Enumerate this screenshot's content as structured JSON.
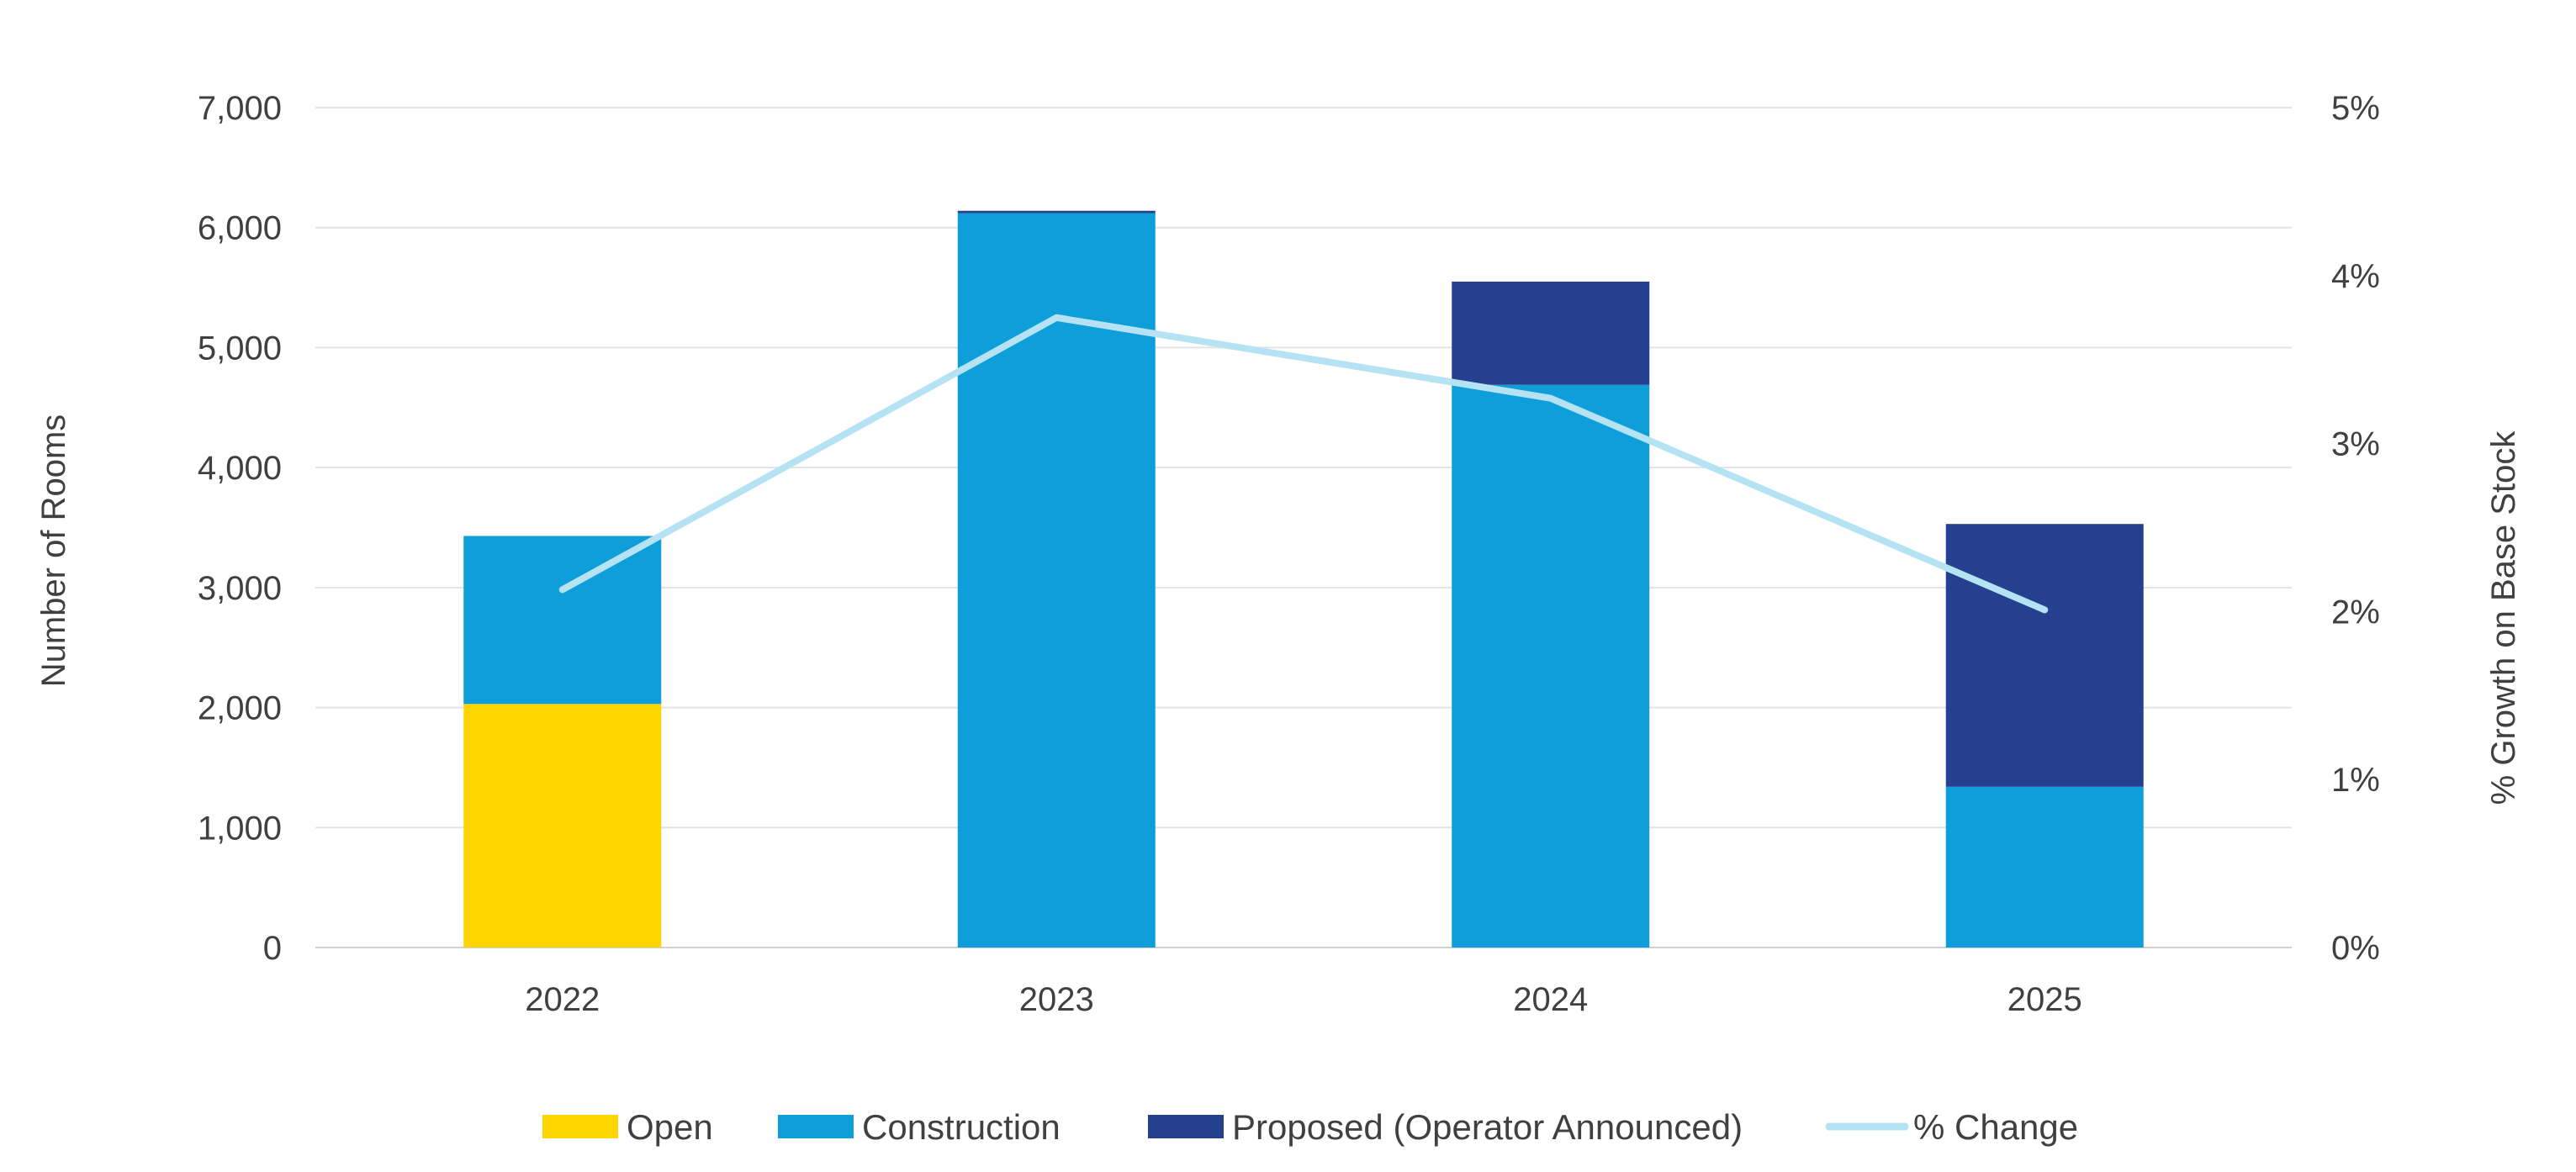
{
  "chart_data": {
    "type": "bar",
    "stacked": true,
    "categories": [
      "2022",
      "2023",
      "2024",
      "2025"
    ],
    "series": [
      {
        "name": "Open",
        "type": "bar",
        "axis": "left",
        "color": "#FFD500",
        "values": [
          2030,
          0,
          0,
          0
        ]
      },
      {
        "name": "Construction",
        "type": "bar",
        "axis": "left",
        "color": "#0E9FDA",
        "values": [
          1400,
          6120,
          4690,
          1340
        ]
      },
      {
        "name": "Proposed (Operator Announced)",
        "type": "bar",
        "axis": "left",
        "color": "#24408E",
        "values": [
          0,
          20,
          860,
          2190
        ]
      },
      {
        "name": "% Change",
        "type": "line",
        "axis": "right",
        "color": "#B6E3F4",
        "values": [
          2.13,
          3.75,
          3.27,
          2.01
        ]
      }
    ],
    "ylabel": "Number of Rooms",
    "y2label": "% Growth on Base Stock",
    "ylim": [
      0,
      7000
    ],
    "y2lim": [
      0,
      5
    ],
    "yticks": [
      "0",
      "1,000",
      "2,000",
      "3,000",
      "4,000",
      "5,000",
      "6,000",
      "7,000"
    ],
    "y2ticks": [
      "0%",
      "1%",
      "2%",
      "3%",
      "4%",
      "5%"
    ],
    "grid": true,
    "legend_position": "bottom"
  }
}
